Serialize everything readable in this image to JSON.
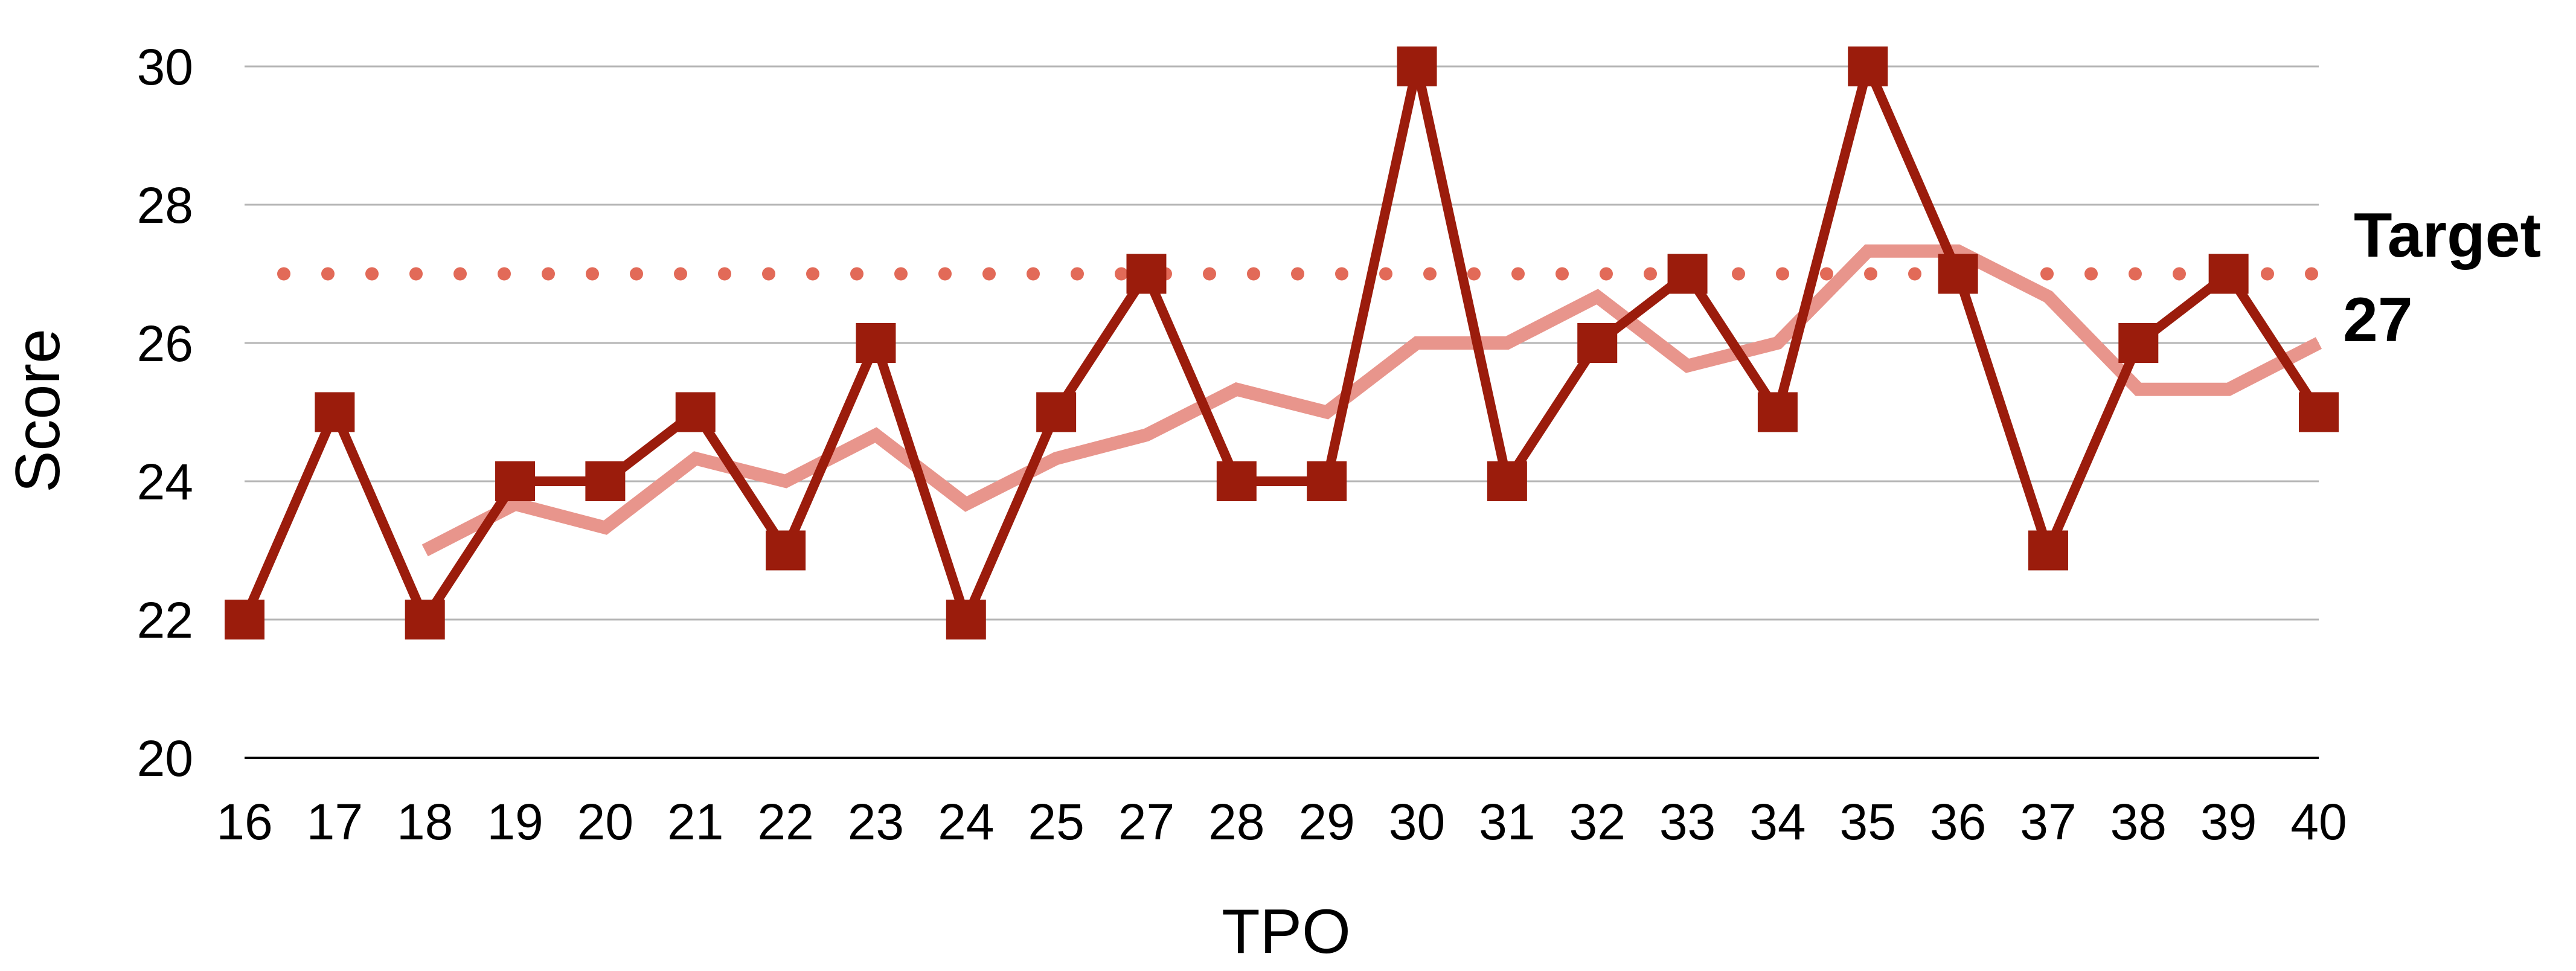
{
  "chart_data": {
    "type": "line",
    "xlabel": "TPO",
    "ylabel": "Score",
    "ylim": [
      20,
      30
    ],
    "yticks": [
      20,
      22,
      24,
      26,
      28,
      30
    ],
    "grid": true,
    "categories": [
      "16",
      "17",
      "18",
      "19",
      "20",
      "21",
      "22",
      "23",
      "24",
      "25",
      "27",
      "28",
      "29",
      "30",
      "31",
      "32",
      "33",
      "34",
      "35",
      "36",
      "37",
      "38",
      "39",
      "40"
    ],
    "series": [
      {
        "values": [
          22,
          25,
          22,
          24,
          24,
          25,
          23,
          26,
          22,
          25,
          27,
          24,
          24,
          30,
          24,
          26,
          27,
          25,
          30,
          27,
          23,
          26,
          27,
          25
        ],
        "color": "#9b1c0c",
        "marker": "square"
      },
      {
        "values": [
          null,
          null,
          23,
          23.67,
          23.33,
          24.33,
          24,
          24.67,
          23.67,
          24.33,
          24.67,
          25.33,
          25,
          26,
          26,
          26.67,
          25.67,
          26,
          27.33,
          27.33,
          26.67,
          25.33,
          25.33,
          26
        ],
        "color": "#e8958c",
        "marker": "none"
      }
    ],
    "target": {
      "value": 27,
      "label_line1": "Target",
      "label_line2": "27",
      "color": "#e26a58",
      "style": "dotted"
    }
  }
}
